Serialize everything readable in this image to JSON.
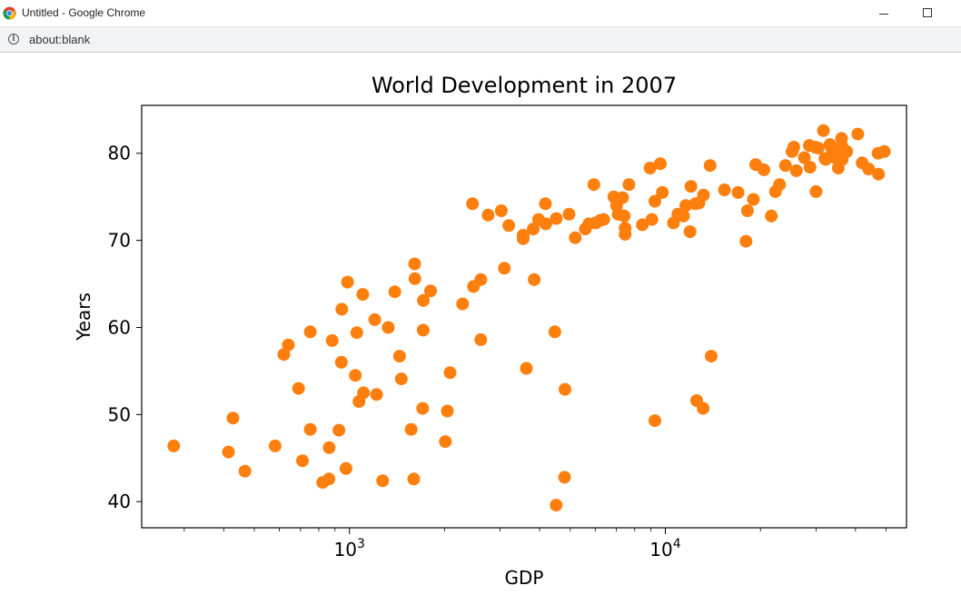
{
  "window": {
    "title": "Untitled - Google Chrome",
    "icon": "chrome-icon",
    "controls": [
      "minimize",
      "maximize"
    ]
  },
  "address_bar": {
    "url": "about:blank",
    "icon": "info-icon"
  },
  "chart_data": {
    "type": "scatter",
    "title": "World Development in 2007",
    "xlabel": "GDP",
    "ylabel": "Years",
    "xscale": "log",
    "xlim": [
      220,
      58000
    ],
    "ylim": [
      37,
      85.5
    ],
    "xticks": [
      {
        "value": 1000,
        "base": "10",
        "exp": "3"
      },
      {
        "value": 10000,
        "base": "10",
        "exp": "4"
      }
    ],
    "yticks": [
      40,
      50,
      60,
      70,
      80
    ],
    "color": "#ff7f0e",
    "points": [
      [
        278,
        46.4
      ],
      [
        414,
        45.7
      ],
      [
        428,
        49.6
      ],
      [
        467,
        43.5
      ],
      [
        582,
        46.4
      ],
      [
        620,
        56.9
      ],
      [
        641,
        58.0
      ],
      [
        690,
        53.0
      ],
      [
        710,
        44.7
      ],
      [
        752,
        48.3
      ],
      [
        752,
        59.5
      ],
      [
        823,
        42.2
      ],
      [
        861,
        42.6
      ],
      [
        863,
        46.2
      ],
      [
        882,
        58.5
      ],
      [
        926,
        48.2
      ],
      [
        943,
        56.0
      ],
      [
        946,
        62.1
      ],
      [
        975,
        43.8
      ],
      [
        986,
        65.2
      ],
      [
        1044,
        54.5
      ],
      [
        1055,
        59.4
      ],
      [
        1072,
        51.5
      ],
      [
        1102,
        63.8
      ],
      [
        1108,
        52.5
      ],
      [
        1203,
        60.9
      ],
      [
        1219,
        52.3
      ],
      [
        1274,
        42.4
      ],
      [
        1327,
        60.0
      ],
      [
        1392,
        64.1
      ],
      [
        1441,
        56.7
      ],
      [
        1459,
        54.1
      ],
      [
        1569,
        48.3
      ],
      [
        1598,
        42.6
      ],
      [
        1609,
        67.3
      ],
      [
        1612,
        65.6
      ],
      [
        1705,
        50.7
      ],
      [
        1712,
        59.7
      ],
      [
        1714,
        63.1
      ],
      [
        1806,
        64.2
      ],
      [
        2012,
        46.9
      ],
      [
        2042,
        50.4
      ],
      [
        2083,
        54.8
      ],
      [
        2281,
        62.7
      ],
      [
        2452,
        74.2
      ],
      [
        2471,
        64.7
      ],
      [
        2605,
        58.6
      ],
      [
        2606,
        65.5
      ],
      [
        2749,
        72.9
      ],
      [
        3025,
        73.4
      ],
      [
        3095,
        66.8
      ],
      [
        3193,
        71.7
      ],
      [
        3548,
        70.6
      ],
      [
        3548,
        70.2
      ],
      [
        3632,
        55.3
      ],
      [
        3820,
        71.3
      ],
      [
        3845,
        65.5
      ],
      [
        3970,
        72.4
      ],
      [
        4173,
        74.2
      ],
      [
        4184,
        71.9
      ],
      [
        4471,
        59.5
      ],
      [
        4513,
        39.6
      ],
      [
        4519,
        72.5
      ],
      [
        4797,
        42.8
      ],
      [
        4811,
        52.9
      ],
      [
        4959,
        73.0
      ],
      [
        5186,
        70.3
      ],
      [
        5581,
        71.3
      ],
      [
        5728,
        71.9
      ],
      [
        5938,
        76.4
      ],
      [
        6025,
        72.0
      ],
      [
        6223,
        72.3
      ],
      [
        6381,
        72.4
      ],
      [
        6873,
        75.0
      ],
      [
        7007,
        74.0
      ],
      [
        7093,
        73.0
      ],
      [
        7320,
        74.9
      ],
      [
        7408,
        72.8
      ],
      [
        7458,
        71.4
      ],
      [
        7459,
        70.7
      ],
      [
        7670,
        76.4
      ],
      [
        8458,
        71.8
      ],
      [
        8948,
        78.3
      ],
      [
        9065,
        72.4
      ],
      [
        9269,
        74.5
      ],
      [
        9270,
        49.3
      ],
      [
        9645,
        78.8
      ],
      [
        9786,
        75.5
      ],
      [
        10611,
        72.0
      ],
      [
        10957,
        73.0
      ],
      [
        11416,
        72.8
      ],
      [
        11606,
        74.0
      ],
      [
        11977,
        71.0
      ],
      [
        12057,
        76.2
      ],
      [
        12451,
        74.2
      ],
      [
        12570,
        51.6
      ],
      [
        12779,
        74.3
      ],
      [
        13172,
        50.7
      ],
      [
        13206,
        75.2
      ],
      [
        13859,
        78.6
      ],
      [
        13970,
        56.7
      ],
      [
        15390,
        75.8
      ],
      [
        17000,
        75.5
      ],
      [
        18008,
        69.9
      ],
      [
        18200,
        73.4
      ],
      [
        19000,
        74.7
      ],
      [
        19328,
        78.7
      ],
      [
        20510,
        78.1
      ],
      [
        21655,
        72.8
      ],
      [
        22316,
        75.6
      ],
      [
        23000,
        76.4
      ],
      [
        24000,
        78.6
      ],
      [
        25185,
        80.2
      ],
      [
        25523,
        80.7
      ],
      [
        26000,
        78.0
      ],
      [
        27538,
        79.5
      ],
      [
        28569,
        80.9
      ],
      [
        28718,
        78.4
      ],
      [
        29796,
        80.7
      ],
      [
        30000,
        75.6
      ],
      [
        30470,
        80.6
      ],
      [
        31656,
        82.6
      ],
      [
        32000,
        79.4
      ],
      [
        32170,
        79.3
      ],
      [
        33203,
        81.0
      ],
      [
        33693,
        80.5
      ],
      [
        33700,
        79.8
      ],
      [
        34435,
        80.2
      ],
      [
        34500,
        79.5
      ],
      [
        35278,
        78.3
      ],
      [
        36126,
        81.7
      ],
      [
        36180,
        80.9
      ],
      [
        36319,
        79.3
      ],
      [
        36797,
        80.0
      ],
      [
        37506,
        80.2
      ],
      [
        40676,
        82.2
      ],
      [
        42000,
        78.9
      ],
      [
        44000,
        78.2
      ],
      [
        47143,
        80.0
      ],
      [
        47307,
        77.6
      ],
      [
        49357,
        80.2
      ]
    ]
  }
}
